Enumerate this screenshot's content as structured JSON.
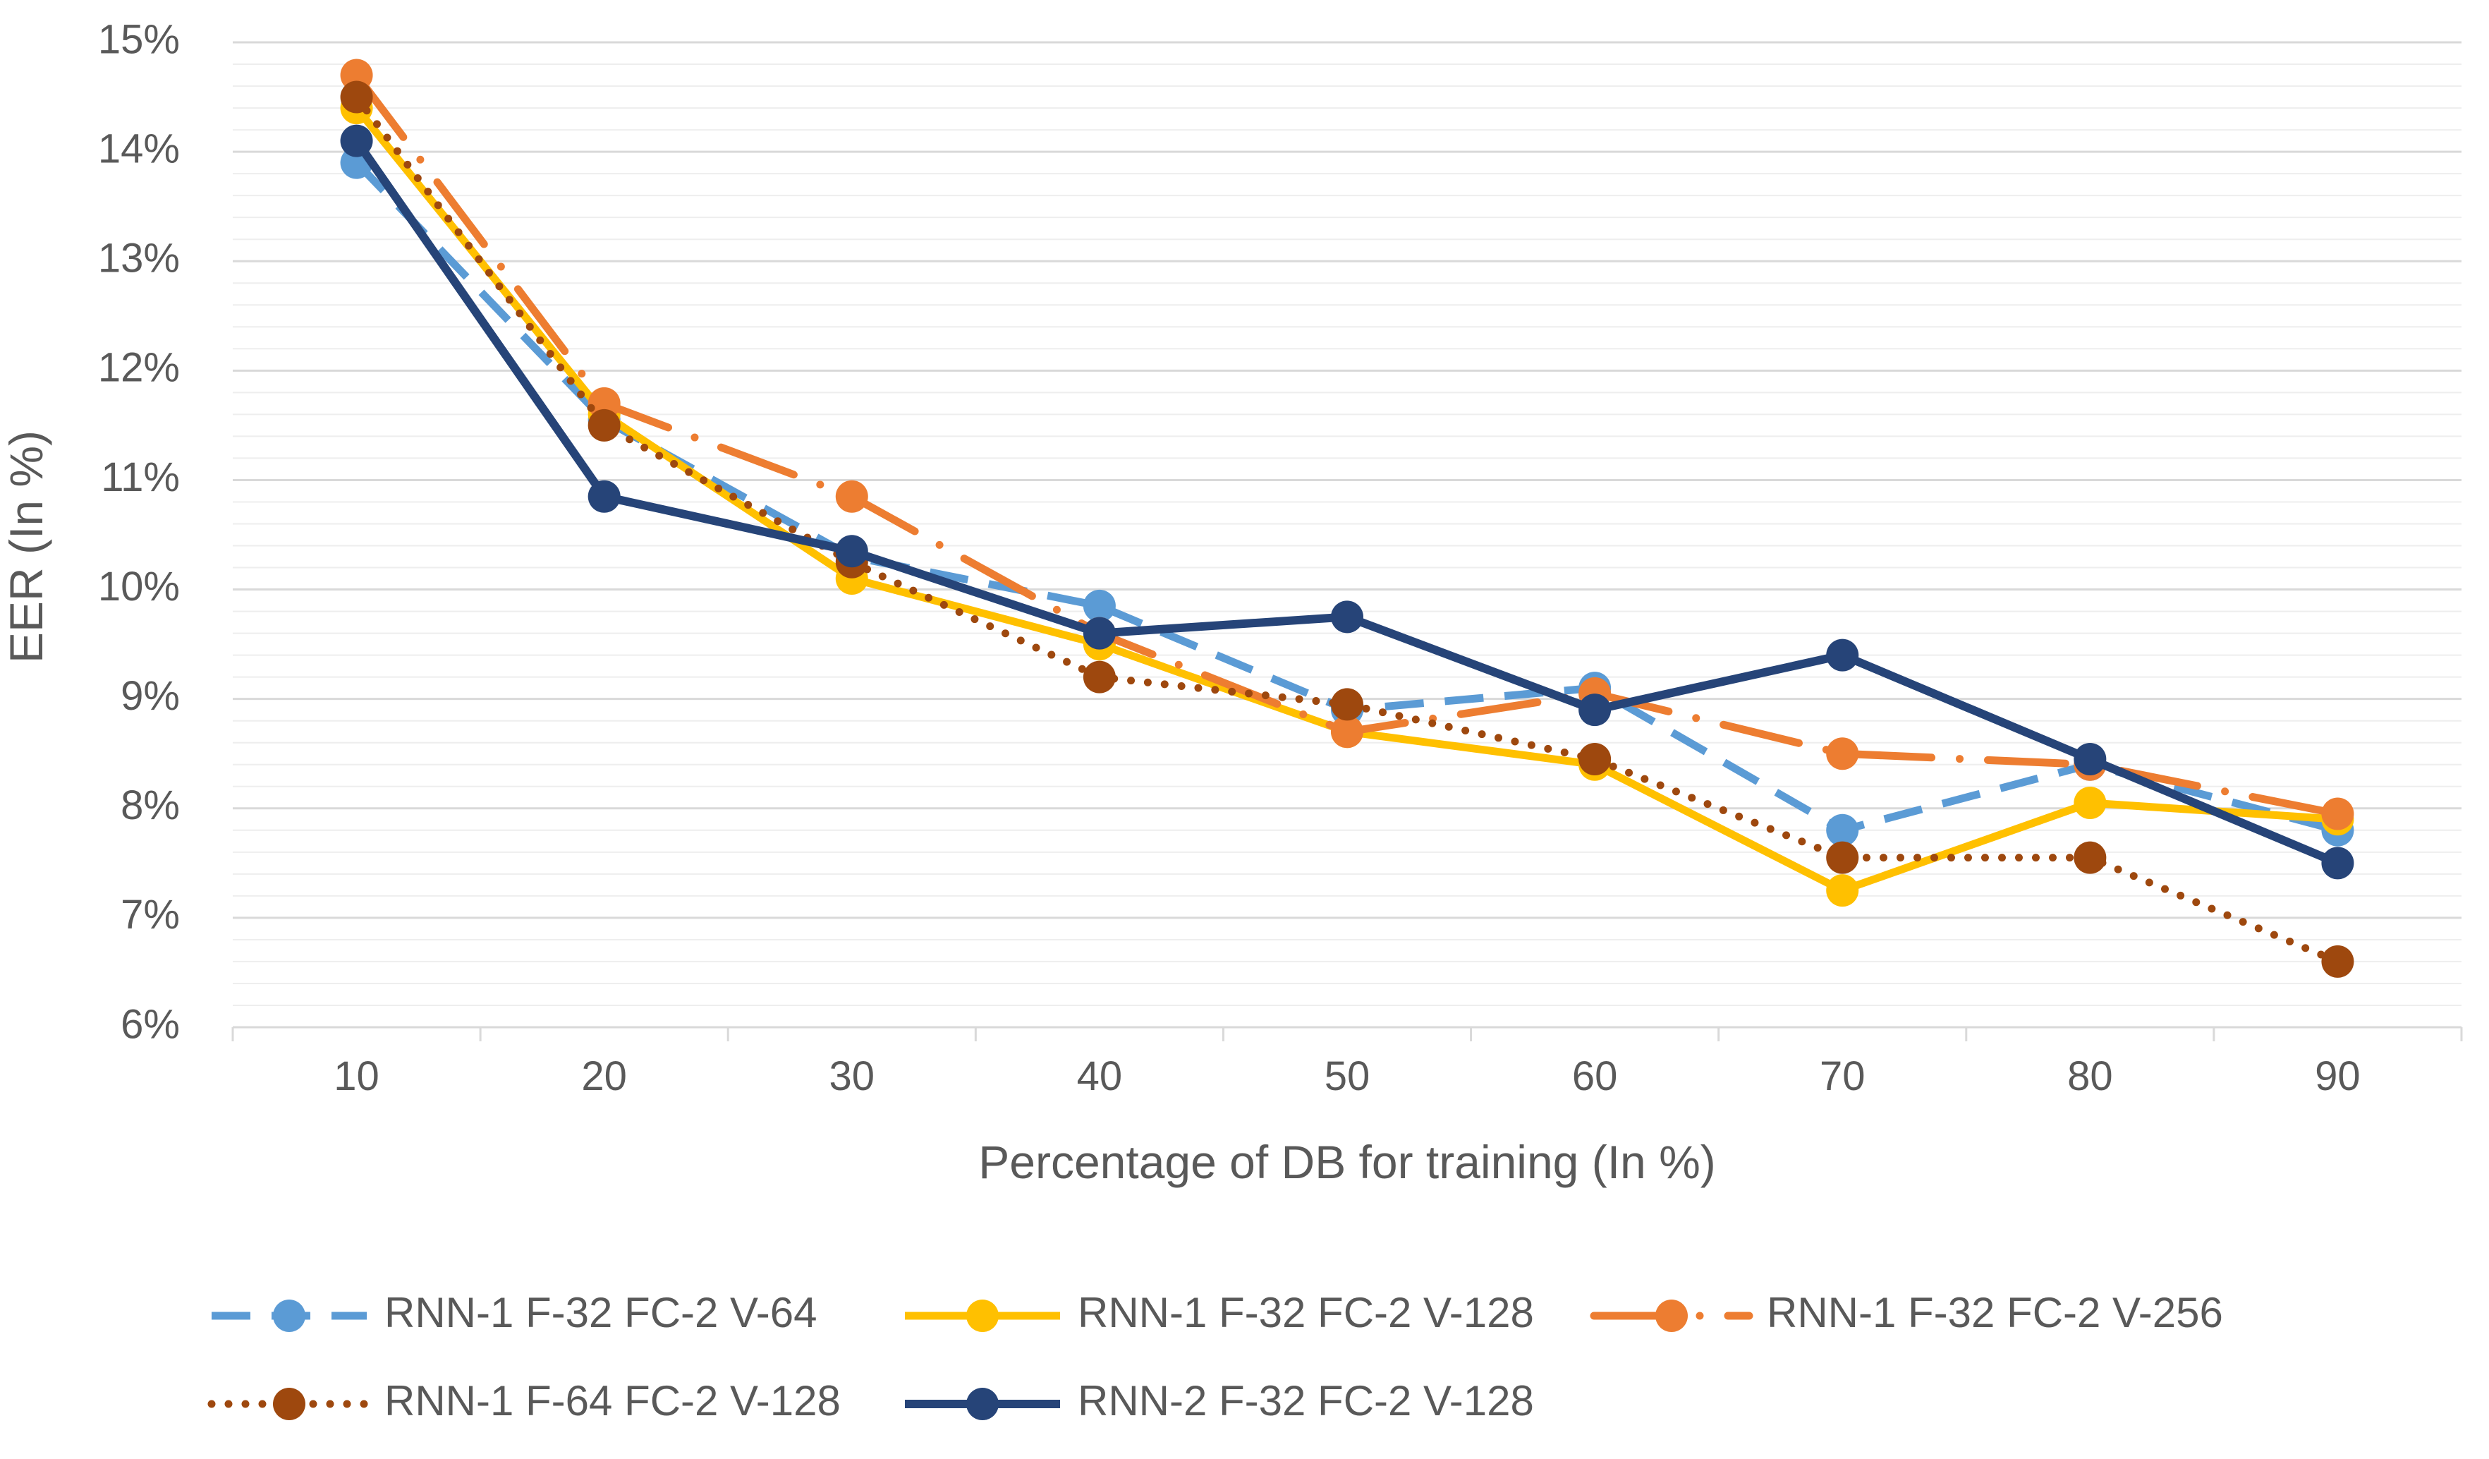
{
  "chart_data": {
    "type": "line",
    "title": "",
    "xlabel": "Percentage of DB for training (In %)",
    "ylabel": "EER (In %)",
    "categories": [
      "10",
      "20",
      "30",
      "40",
      "50",
      "60",
      "70",
      "80",
      "90"
    ],
    "ylim": [
      6,
      15
    ],
    "yticks": [
      "6%",
      "7%",
      "8%",
      "9%",
      "10%",
      "11%",
      "12%",
      "13%",
      "14%",
      "15%"
    ],
    "grid": true,
    "legend_position": "bottom",
    "series": [
      {
        "name": "RNN-1  F-32 FC-2 V-64",
        "color": "#5b9bd5",
        "style": "dash",
        "values": [
          13.9,
          11.55,
          10.3,
          9.85,
          8.9,
          9.1,
          7.8,
          8.4,
          7.8
        ]
      },
      {
        "name": "RNN-1  F-32 FC-2 V-128",
        "color": "#ffc000",
        "style": "solid",
        "values": [
          14.4,
          11.6,
          10.1,
          9.5,
          8.7,
          8.4,
          7.25,
          8.05,
          7.9
        ]
      },
      {
        "name": "RNN-1 F-32 FC-2 V-256",
        "color": "#ed7d31",
        "style": "longdashdot",
        "values": [
          14.7,
          11.7,
          10.85,
          9.6,
          8.7,
          9.05,
          8.5,
          8.4,
          7.95
        ]
      },
      {
        "name": "RNN-1  F-64 FC-2 V-128",
        "color": "#9e480e",
        "style": "dot",
        "values": [
          14.5,
          11.5,
          10.25,
          9.2,
          8.95,
          8.45,
          7.55,
          7.55,
          6.6
        ]
      },
      {
        "name": "RNN-2  F-32 FC-2 V-128",
        "color": "#264478",
        "style": "solid",
        "values": [
          14.1,
          10.85,
          10.35,
          9.6,
          9.75,
          8.9,
          9.4,
          8.45,
          7.5
        ]
      }
    ]
  }
}
